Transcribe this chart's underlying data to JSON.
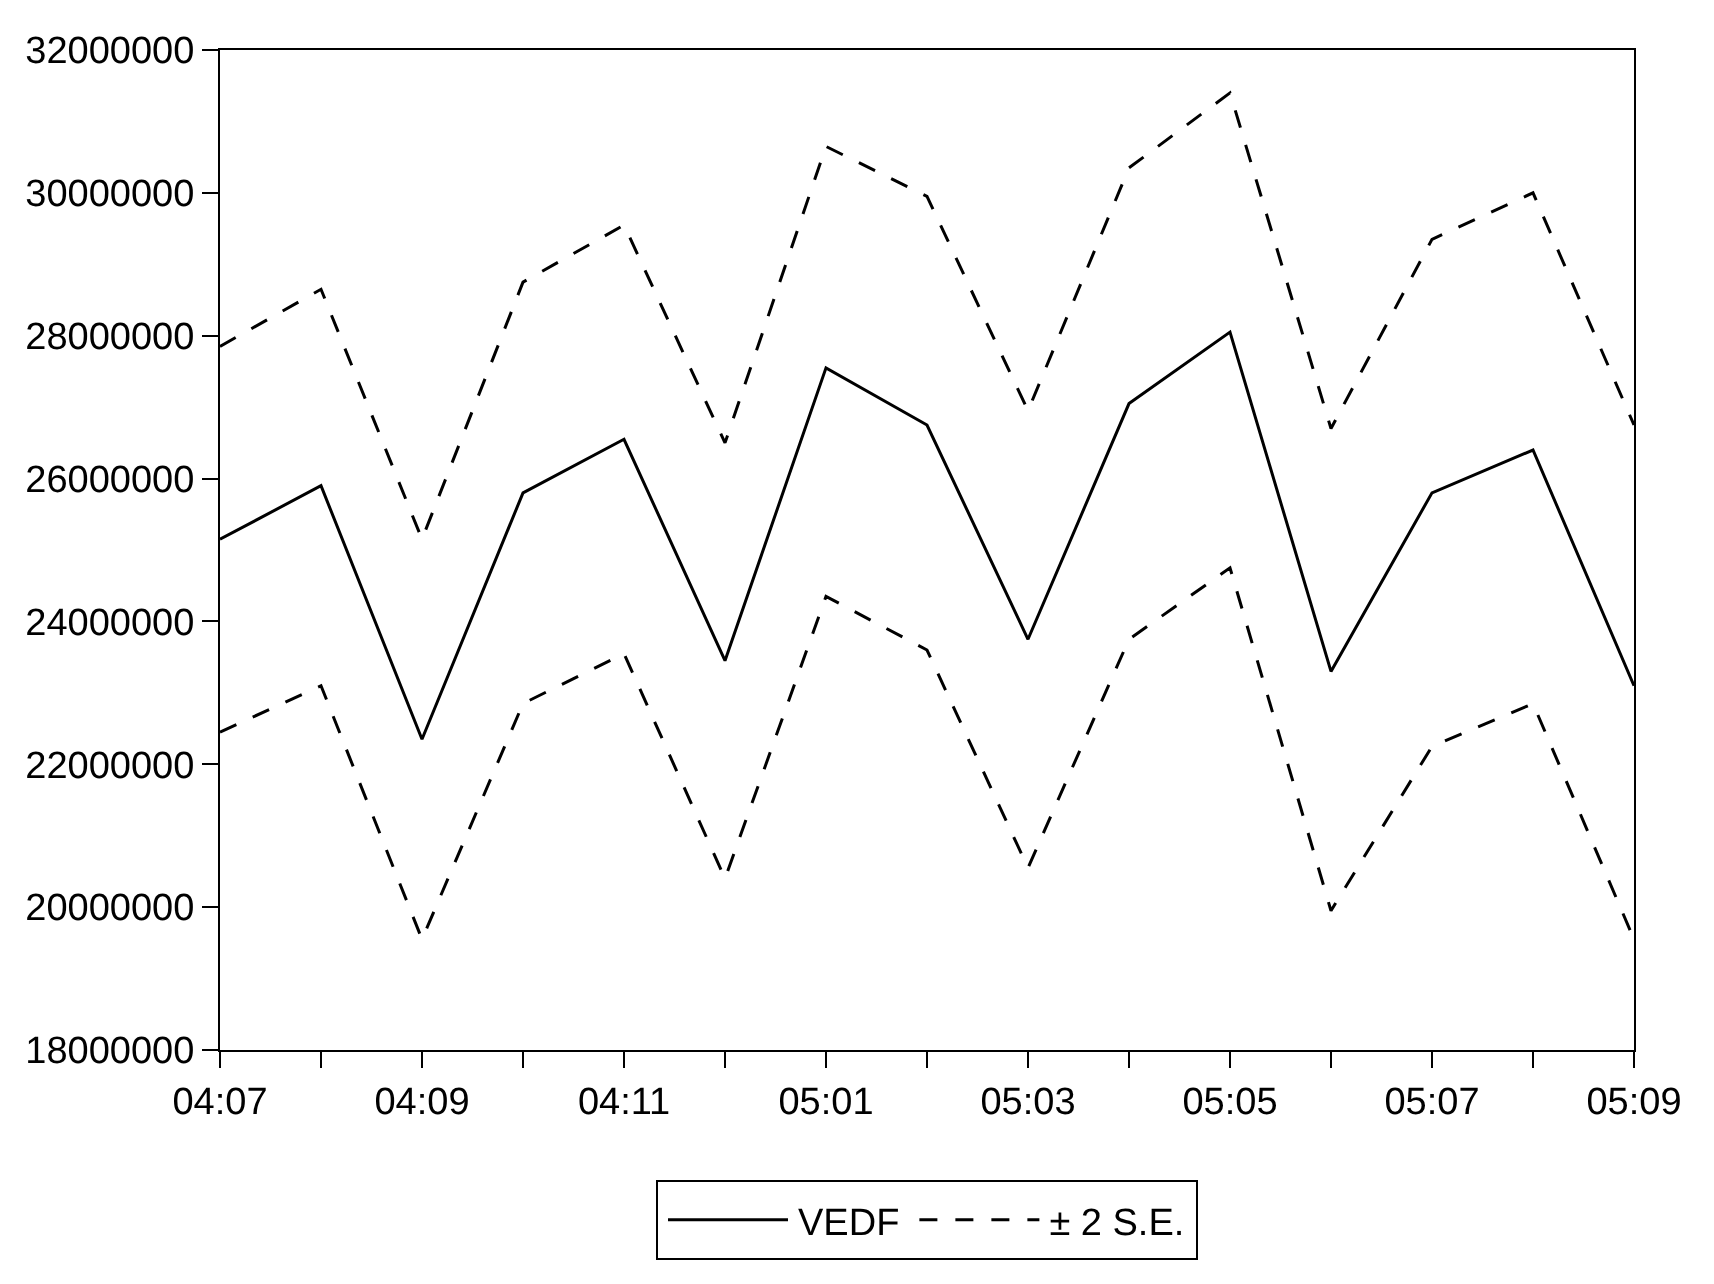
{
  "chart_data": {
    "type": "line",
    "categories": [
      "04:07",
      null,
      "04:09",
      null,
      "04:11",
      null,
      "05:01",
      null,
      "05:03",
      null,
      "05:05",
      null,
      "05:07",
      null,
      "05:09"
    ],
    "series": [
      {
        "name": "VEDF",
        "color": "#000000",
        "line_style": "solid",
        "values": [
          25150000,
          25900000,
          22350000,
          25800000,
          26550000,
          23450000,
          27550000,
          26750000,
          23750000,
          27050000,
          28050000,
          23300000,
          25800000,
          26400000,
          23100000
        ]
      },
      {
        "name": "± 2 S.E.",
        "color": "#000000",
        "line_style": "dashed",
        "values": [
          27850000,
          28650000,
          25150000,
          28750000,
          29550000,
          26500000,
          30650000,
          29950000,
          26950000,
          30350000,
          31400000,
          26700000,
          29350000,
          30000000,
          26750000
        ]
      },
      {
        "color": "#000000",
        "line_style": "dashed",
        "values": [
          22450000,
          23100000,
          19550000,
          22850000,
          23550000,
          20400000,
          24350000,
          23600000,
          20550000,
          23750000,
          24750000,
          19950000,
          22250000,
          22850000,
          19550000
        ]
      }
    ],
    "ylim": [
      18000000,
      32000000
    ],
    "yticks": [
      18000000,
      20000000,
      22000000,
      24000000,
      26000000,
      28000000,
      30000000,
      32000000
    ],
    "legend": "bottom",
    "marker": "none"
  }
}
